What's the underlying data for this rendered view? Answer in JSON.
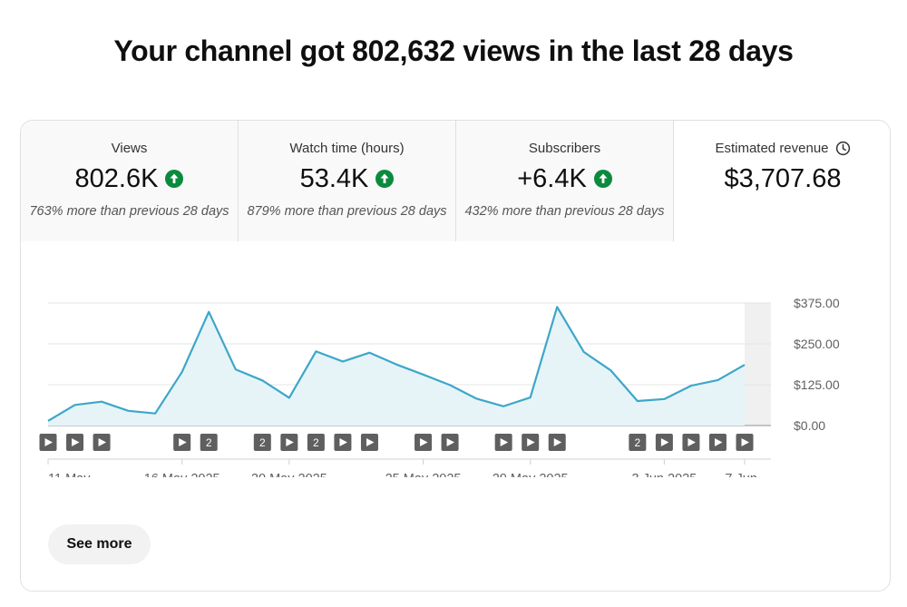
{
  "headline": "Your channel got 802,632 views in the last 28 days",
  "metrics": [
    {
      "label": "Views",
      "value": "802.6K",
      "trend": "up",
      "comparison": "763% more than previous 28 days"
    },
    {
      "label": "Watch time (hours)",
      "value": "53.4K",
      "trend": "up",
      "comparison": "879% more than previous 28 days"
    },
    {
      "label": "Subscribers",
      "value": "+6.4K",
      "trend": "up",
      "comparison": "432% more than previous 28 days"
    },
    {
      "label": "Estimated revenue",
      "value": "$3,707.68",
      "icon": "clock-icon"
    }
  ],
  "colors": {
    "line": "#3ea6c9",
    "fill": "#e6f4f8",
    "up_badge": "#0b8a3e",
    "marker": "#5f5f5f"
  },
  "chart_data": {
    "type": "area",
    "series": [
      {
        "values": [
          14,
          63,
          73,
          45,
          37,
          164,
          348,
          172,
          138,
          85,
          227,
          196,
          223,
          187,
          156,
          124,
          82,
          59,
          86,
          363,
          225,
          169,
          75,
          81,
          122,
          139,
          186
        ]
      }
    ],
    "x_ticks": [
      "11 May ...",
      "16 May 2025",
      "20 May 2025",
      "25 May 2025",
      "29 May 2025",
      "3 Jun 2025",
      "7 Jun ..."
    ],
    "y_ticks": [
      "$375.00",
      "$250.00",
      "$125.00",
      "$0.00"
    ],
    "ylim": [
      0,
      375
    ],
    "grid": true,
    "highlighted_last_day": true
  },
  "markers": [
    {
      "type": "play"
    },
    {
      "type": "play"
    },
    {
      "type": "play"
    },
    null,
    null,
    {
      "type": "play"
    },
    {
      "type": "count",
      "label": "2"
    },
    null,
    {
      "type": "count",
      "label": "2"
    },
    {
      "type": "play"
    },
    {
      "type": "count",
      "label": "2"
    },
    {
      "type": "play"
    },
    {
      "type": "play"
    },
    null,
    {
      "type": "play"
    },
    {
      "type": "play"
    },
    null,
    {
      "type": "play"
    },
    {
      "type": "play"
    },
    {
      "type": "play"
    },
    null,
    null,
    {
      "type": "count",
      "label": "2"
    },
    {
      "type": "play"
    },
    {
      "type": "play"
    },
    {
      "type": "play"
    },
    {
      "type": "play"
    }
  ],
  "see_more_label": "See more"
}
